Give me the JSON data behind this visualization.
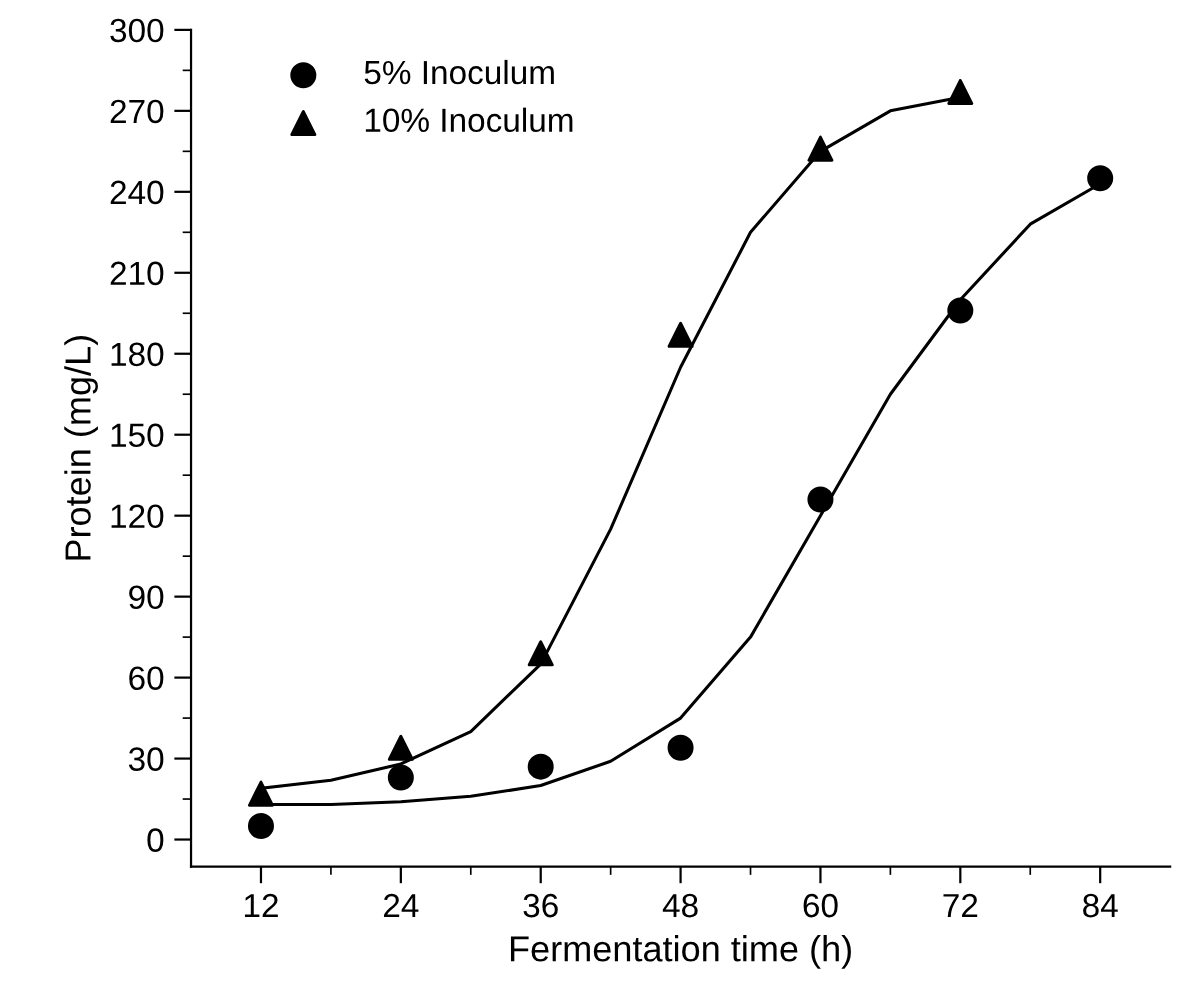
{
  "chart_data": {
    "type": "scatter",
    "xlabel": "Fermentation time (h)",
    "ylabel": "Protein (mg/L)",
    "xlim": [
      6,
      90
    ],
    "ylim": [
      -10,
      300
    ],
    "xticks": [
      12,
      24,
      36,
      48,
      60,
      72,
      84,
      {
        "value": 18,
        "label": null
      },
      {
        "value": 30,
        "label": null
      },
      {
        "value": 42,
        "label": null
      },
      {
        "value": 54,
        "label": null
      },
      {
        "value": 66,
        "label": null
      },
      {
        "value": 78,
        "label": null
      }
    ],
    "yticks": [
      0,
      30,
      60,
      90,
      120,
      150,
      180,
      210,
      240,
      270,
      300,
      {
        "value": 15,
        "label": null
      },
      {
        "value": 45,
        "label": null
      },
      {
        "value": 75,
        "label": null
      },
      {
        "value": 105,
        "label": null
      },
      {
        "value": 135,
        "label": null
      },
      {
        "value": 165,
        "label": null
      },
      {
        "value": 195,
        "label": null
      },
      {
        "value": 225,
        "label": null
      },
      {
        "value": 255,
        "label": null
      },
      {
        "value": 285,
        "label": null
      }
    ],
    "grid": false,
    "legend": "top left",
    "series": [
      {
        "name": "5% Inoculum",
        "color": "#000000",
        "marker": "circle",
        "x": [
          12,
          24,
          36,
          48,
          60,
          72,
          84
        ],
        "values": [
          5,
          23,
          27,
          34,
          126,
          196,
          245
        ]
      },
      {
        "name": "10% Inoculum",
        "color": "#000000",
        "marker": "triangle",
        "x": [
          12,
          24,
          36,
          48,
          60,
          72
        ],
        "values": [
          17,
          34,
          69,
          187,
          256,
          277
        ]
      },
      {
        "type": "line",
        "color": "#000000",
        "marker": "none",
        "line_style": "solid",
        "x": [
          12,
          18,
          24,
          30,
          36,
          42,
          48,
          54,
          60,
          66,
          72,
          78,
          84
        ],
        "values": [
          13,
          13,
          14,
          16,
          20,
          29,
          45,
          75,
          120,
          165,
          200,
          228,
          243
        ]
      },
      {
        "type": "line",
        "color": "#000000",
        "marker": "none",
        "line_style": "solid",
        "x": [
          12,
          18,
          24,
          30,
          36,
          42,
          48,
          54,
          60,
          66,
          72
        ],
        "values": [
          19,
          22,
          28,
          40,
          65,
          115,
          175,
          225,
          255,
          270,
          275
        ]
      }
    ]
  }
}
